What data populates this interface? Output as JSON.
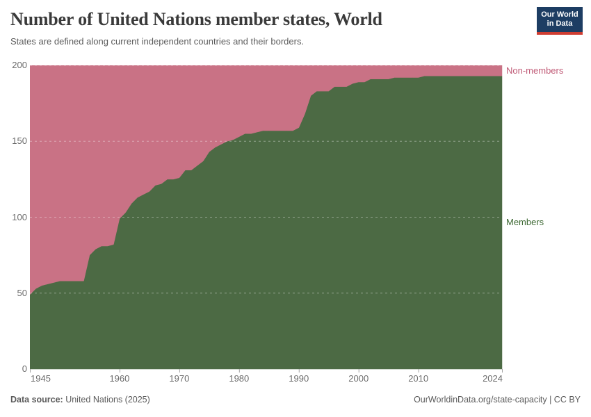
{
  "header": {
    "title": "Number of United Nations member states, World",
    "subtitle": "States are defined along current independent countries and their borders.",
    "logo": {
      "line1": "Our World",
      "line2": "in Data",
      "bg_color": "#1d3d63",
      "accent_color": "#cf3d32"
    }
  },
  "chart_data": {
    "type": "area",
    "stacked": true,
    "title": "Number of United Nations member states, World",
    "xlabel": "",
    "ylabel": "",
    "ylim": [
      0,
      200
    ],
    "total": 200,
    "grid": "dashed-horizontal",
    "legend_position": "right-edge-labels",
    "yticks": [
      0,
      50,
      100,
      150,
      200
    ],
    "xticks": [
      1945,
      1960,
      1970,
      1980,
      1990,
      2000,
      2010,
      2024
    ],
    "x": [
      1945,
      1946,
      1947,
      1948,
      1949,
      1950,
      1951,
      1952,
      1953,
      1954,
      1955,
      1956,
      1957,
      1958,
      1959,
      1960,
      1961,
      1962,
      1963,
      1964,
      1965,
      1966,
      1967,
      1968,
      1969,
      1970,
      1971,
      1972,
      1973,
      1974,
      1975,
      1976,
      1977,
      1978,
      1979,
      1980,
      1981,
      1982,
      1983,
      1984,
      1985,
      1986,
      1987,
      1988,
      1989,
      1990,
      1991,
      1992,
      1993,
      1994,
      1995,
      1996,
      1997,
      1998,
      1999,
      2000,
      2001,
      2002,
      2003,
      2004,
      2005,
      2006,
      2007,
      2008,
      2009,
      2010,
      2011,
      2012,
      2013,
      2014,
      2015,
      2016,
      2017,
      2018,
      2019,
      2020,
      2021,
      2022,
      2023,
      2024
    ],
    "series": [
      {
        "name": "Members",
        "color": "#4c6a44",
        "label_color": "#3f6a35",
        "values": [
          49,
          53,
          55,
          56,
          57,
          58,
          58,
          58,
          58,
          58,
          75,
          79,
          81,
          81,
          82,
          99,
          103,
          109,
          113,
          115,
          117,
          121,
          122,
          125,
          125,
          126,
          131,
          131,
          134,
          137,
          143,
          146,
          148,
          150,
          151,
          153,
          155,
          155,
          156,
          157,
          157,
          157,
          157,
          157,
          157,
          159,
          168,
          180,
          183,
          183,
          183,
          186,
          186,
          186,
          188,
          189,
          189,
          191,
          191,
          191,
          191,
          192,
          192,
          192,
          192,
          192,
          193,
          193,
          193,
          193,
          193,
          193,
          193,
          193,
          193,
          193,
          193,
          193,
          193,
          193
        ]
      },
      {
        "name": "Non-members",
        "color": "#c97285",
        "label_color": "#c05b77",
        "values": [
          151,
          147,
          145,
          144,
          143,
          142,
          142,
          142,
          142,
          142,
          125,
          121,
          119,
          119,
          118,
          101,
          97,
          91,
          87,
          85,
          83,
          79,
          78,
          75,
          75,
          74,
          69,
          69,
          66,
          63,
          57,
          54,
          52,
          50,
          49,
          47,
          45,
          45,
          44,
          43,
          43,
          43,
          43,
          43,
          43,
          41,
          32,
          20,
          17,
          17,
          17,
          14,
          14,
          14,
          12,
          11,
          11,
          9,
          9,
          9,
          9,
          8,
          8,
          8,
          8,
          8,
          7,
          7,
          7,
          7,
          7,
          7,
          7,
          7,
          7,
          7,
          7,
          7,
          7,
          7
        ]
      }
    ]
  },
  "footer": {
    "source_label": "Data source:",
    "source_value": " United Nations (2025)",
    "link": "OurWorldinData.org/state-capacity | CC BY"
  }
}
